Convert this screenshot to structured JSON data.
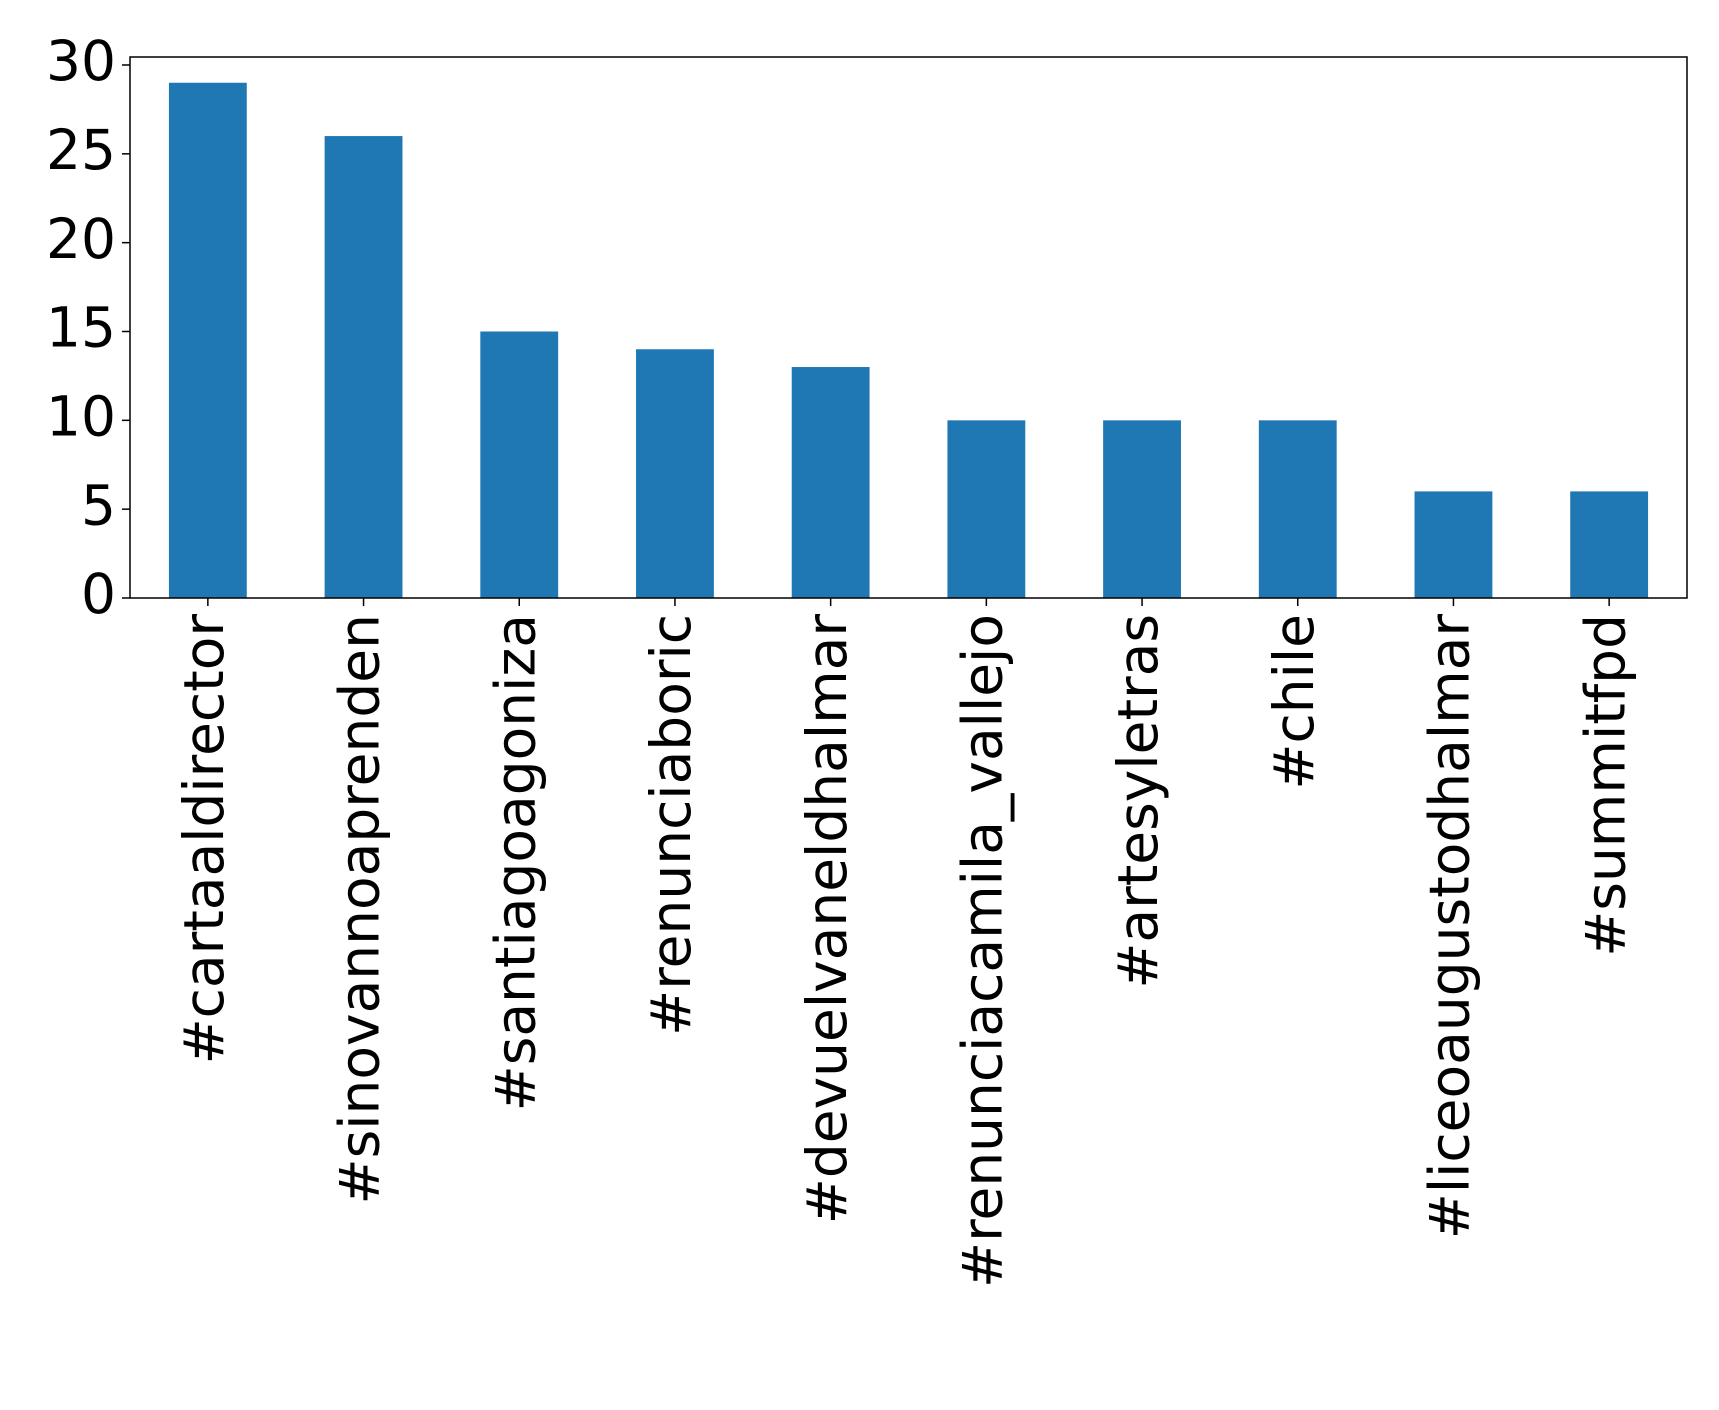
{
  "chart_data": {
    "type": "bar",
    "categories": [
      "#cartaaldirector",
      "#sinovannoaprenden",
      "#santiagoagoniza",
      "#renunciaboric",
      "#devuelvaneldhalmar",
      "#renunciacamila_vallejo",
      "#artesyletras",
      "#chile",
      "#liceoaugustodhalmar",
      "#summitfpd"
    ],
    "values": [
      29,
      26,
      15,
      14,
      13,
      10,
      10,
      10,
      6,
      6
    ],
    "color": "#1f77b4",
    "ylim": [
      0,
      30.45
    ],
    "yticks": [
      0,
      5,
      10,
      15,
      20,
      25,
      30
    ],
    "grid": false
  }
}
